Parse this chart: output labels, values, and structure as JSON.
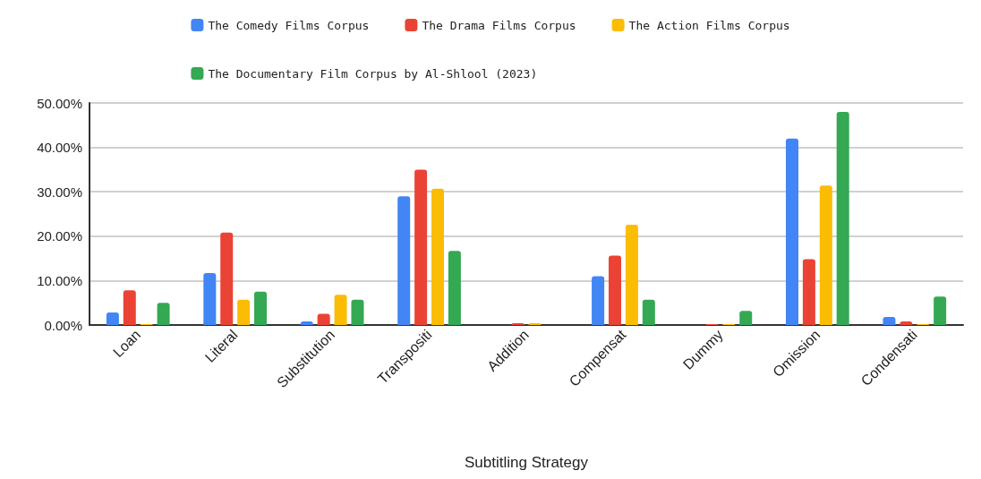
{
  "chart_data": {
    "type": "bar",
    "xlabel": "Subtitling Strategy",
    "categories": [
      "Loan",
      "Literal",
      "Substitution",
      "Transpositi",
      "Addition",
      "Compensat",
      "Dummy",
      "Omission",
      "Condensati"
    ],
    "series": [
      {
        "name": "The Comedy Films Corpus",
        "color": "#4285f4",
        "values": [
          2.8,
          11.7,
          0.8,
          29.0,
          0,
          11.0,
          0,
          42.0,
          1.8
        ]
      },
      {
        "name": "The Drama Films Corpus",
        "color": "#ea4335",
        "values": [
          7.8,
          20.8,
          2.5,
          35.0,
          0.4,
          15.6,
          0.2,
          14.8,
          0.8
        ]
      },
      {
        "name": "The Action Films Corpus",
        "color": "#fbbc04",
        "values": [
          0.2,
          5.7,
          6.8,
          30.7,
          0.4,
          22.6,
          0.2,
          31.4,
          0.2
        ]
      },
      {
        "name": "The Documentary Film Corpus by Al-Shlool (2023)",
        "color": "#34a853",
        "values": [
          5.0,
          7.5,
          5.7,
          16.7,
          null,
          5.7,
          3.2,
          48.0,
          6.4
        ]
      }
    ],
    "ylim": [
      0,
      50
    ],
    "yticks": [
      {
        "value": 0,
        "label": "0.00%"
      },
      {
        "value": 10,
        "label": "10.00%"
      },
      {
        "value": 20,
        "label": "20.00%"
      },
      {
        "value": 30,
        "label": "30.00%"
      },
      {
        "value": 40,
        "label": "40.00%"
      },
      {
        "value": 50,
        "label": "50.00%"
      }
    ],
    "grid": "y",
    "legend": "top"
  }
}
